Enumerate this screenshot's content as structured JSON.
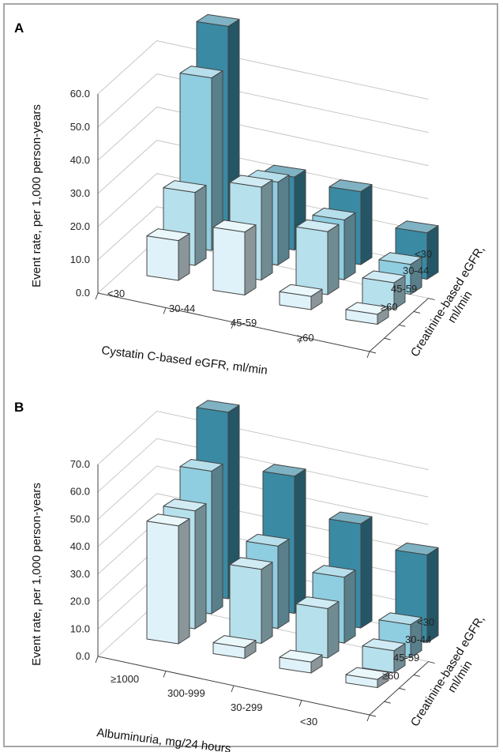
{
  "colors": {
    "row_lt30": "#3a8aa3",
    "row_30_44": "#8fcde0",
    "row_45_59": "#b6e0ec",
    "row_ge60": "#dff2f9"
  },
  "chart_data": [
    {
      "panel_label": "A",
      "type": "bar3d",
      "ylabel": "Event rate, per 1,000 person-years",
      "xlabel": "Cystatin C-based eGFR, ml/min",
      "zlabel": "Creatinine-based eGFR, ml/min",
      "x_categories": [
        "<30",
        "30-44",
        "45-59",
        "≥60"
      ],
      "z_categories": [
        "<30",
        "30-44",
        "45-59",
        "≥60"
      ],
      "y_ticks": [
        "0.0",
        "10.0",
        "20.0",
        "30.0",
        "40.0",
        "50.0",
        "60.0"
      ],
      "ylim": [
        0,
        60
      ],
      "series": [
        {
          "z": "<30",
          "values": [
            63,
            22,
            22,
            14
          ]
        },
        {
          "z": "30-44",
          "values": [
            52,
            25,
            18,
            9
          ]
        },
        {
          "z": "45-59",
          "values": [
            22,
            28,
            19,
            8
          ]
        },
        {
          "z": "≥60",
          "values": [
            12,
            19,
            4,
            3
          ]
        }
      ]
    },
    {
      "panel_label": "B",
      "type": "bar3d",
      "ylabel": "Event rate, per 1,000 person-years",
      "xlabel": "Albuminuria, mg/24 hours",
      "zlabel": "Creatinine-based eGFR, ml/min",
      "x_categories": [
        "≥1000",
        "300-999",
        "30-299",
        "<30"
      ],
      "z_categories": [
        "<30",
        "30-44",
        "45-59",
        "≥60"
      ],
      "y_ticks": [
        "0.0",
        "10.0",
        "20.0",
        "30.0",
        "40.0",
        "50.0",
        "60.0",
        "70.0"
      ],
      "ylim": [
        0,
        70
      ],
      "series": [
        {
          "z": "<30",
          "values": [
            68,
            50,
            38,
            32
          ]
        },
        {
          "z": "30-44",
          "values": [
            52,
            30,
            24,
            12
          ]
        },
        {
          "z": "45-59",
          "values": [
            43,
            27,
            18,
            8
          ]
        },
        {
          "z": "≥60",
          "values": [
            43,
            4,
            4,
            3
          ]
        }
      ]
    }
  ]
}
